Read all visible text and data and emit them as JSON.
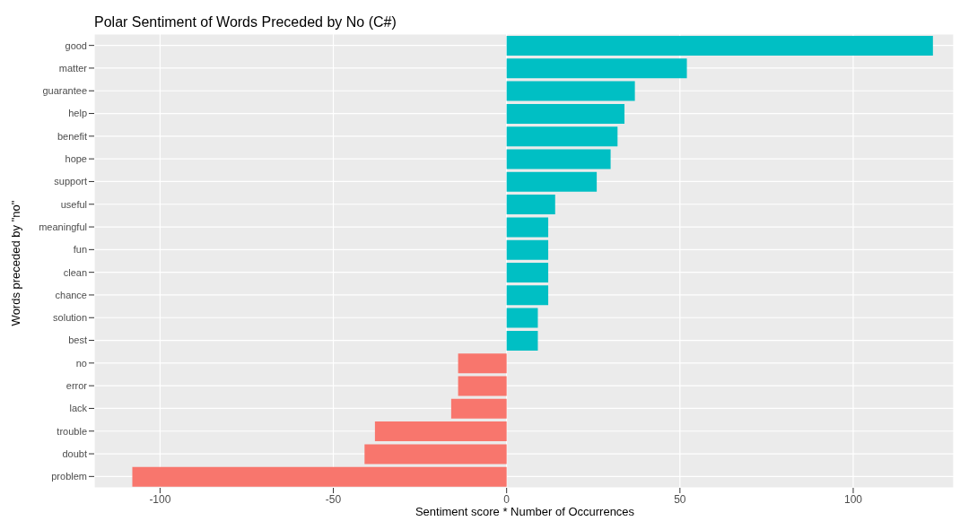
{
  "chart_data": {
    "type": "bar",
    "orientation": "horizontal",
    "title": "Polar Sentiment of Words Preceded by No (C#)",
    "xlabel": "Sentiment score * Number of Occurrences",
    "ylabel": "Words preceded by \"no\"",
    "categories": [
      "good",
      "matter",
      "guarantee",
      "help",
      "benefit",
      "hope",
      "support",
      "useful",
      "meaningful",
      "fun",
      "clean",
      "chance",
      "solution",
      "best",
      "no",
      "error",
      "lack",
      "trouble",
      "doubt",
      "problem"
    ],
    "values": [
      123,
      52,
      37,
      34,
      32,
      30,
      26,
      14,
      12,
      12,
      12,
      12,
      9,
      9,
      -14,
      -14,
      -16,
      -38,
      -41,
      -108
    ],
    "colors": [
      "#00bfc4",
      "#00bfc4",
      "#00bfc4",
      "#00bfc4",
      "#00bfc4",
      "#00bfc4",
      "#00bfc4",
      "#00bfc4",
      "#00bfc4",
      "#00bfc4",
      "#00bfc4",
      "#00bfc4",
      "#00bfc4",
      "#00bfc4",
      "#f8766d",
      "#f8766d",
      "#f8766d",
      "#f8766d",
      "#f8766d",
      "#f8766d"
    ],
    "xlim": [
      -119,
      129
    ],
    "xticks": [
      -100,
      -50,
      0,
      50,
      100
    ],
    "grid": true,
    "legend": false
  }
}
